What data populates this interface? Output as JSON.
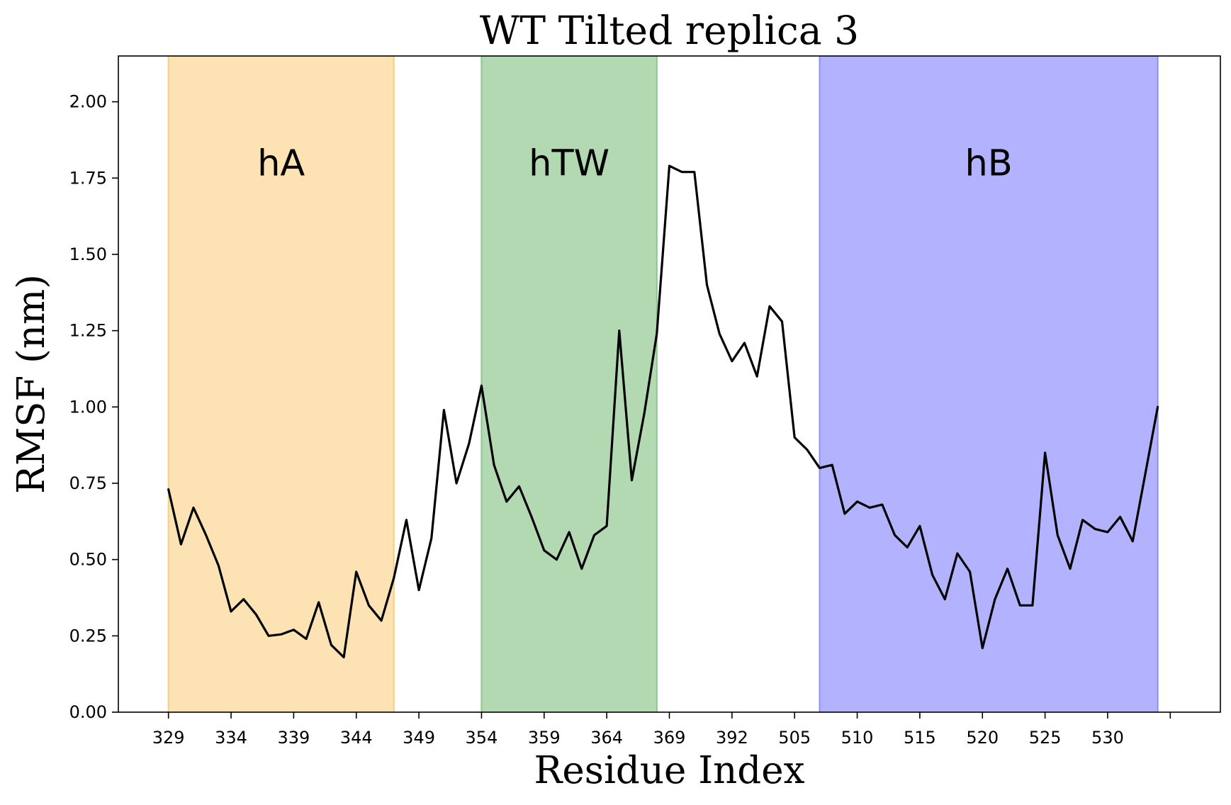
{
  "chart_data": {
    "type": "line",
    "title": "WT Tilted replica 3",
    "xlabel": "Residue Index",
    "ylabel": "RMSF (nm)",
    "ylim": [
      0,
      2.15
    ],
    "xlim": [
      -4,
      84
    ],
    "grid": false,
    "y_ticks": [
      0.0,
      0.25,
      0.5,
      0.75,
      1.0,
      1.25,
      1.5,
      1.75,
      2.0
    ],
    "y_tick_labels": [
      "0.00",
      "0.25",
      "0.50",
      "0.75",
      "1.00",
      "1.25",
      "1.50",
      "1.75",
      "2.00"
    ],
    "x_tick_positions": [
      0,
      5,
      10,
      15,
      20,
      25,
      30,
      35,
      40,
      45,
      50,
      55,
      60,
      65,
      70,
      75,
      80
    ],
    "x_tick_labels": [
      "329",
      "334",
      "339",
      "344",
      "349",
      "354",
      "359",
      "364",
      "369",
      "392",
      "505",
      "510",
      "515",
      "520",
      "525",
      "530",
      ""
    ],
    "regions": [
      {
        "label": "hA",
        "x_start": 0,
        "x_end": 18,
        "color": "#fde2b3",
        "edge": "#f6cf7e"
      },
      {
        "label": "hTW",
        "x_start": 25,
        "x_end": 39,
        "color": "#b2d9b2",
        "edge": "#8cc58c"
      },
      {
        "label": "hB",
        "x_start": 52,
        "x_end": 79,
        "color": "#b2b2ff",
        "edge": "#8f8ff2"
      }
    ],
    "region_label_y": 1.8,
    "series": [
      {
        "color": "#000000",
        "values": [
          0.73,
          0.55,
          0.67,
          0.58,
          0.48,
          0.33,
          0.37,
          0.32,
          0.25,
          0.255,
          0.27,
          0.24,
          0.36,
          0.22,
          0.18,
          0.46,
          0.35,
          0.3,
          0.44,
          0.63,
          0.4,
          0.57,
          0.99,
          0.75,
          0.88,
          1.07,
          0.81,
          0.69,
          0.74,
          0.64,
          0.53,
          0.5,
          0.59,
          0.47,
          0.58,
          0.61,
          1.25,
          0.76,
          0.98,
          1.24,
          1.79,
          1.77,
          1.77,
          1.4,
          1.24,
          1.15,
          1.21,
          1.1,
          1.33,
          1.28,
          0.9,
          0.86,
          0.8,
          0.81,
          0.65,
          0.69,
          0.67,
          0.68,
          0.58,
          0.54,
          0.61,
          0.45,
          0.37,
          0.52,
          0.46,
          0.21,
          0.37,
          0.47,
          0.35,
          0.35,
          0.85,
          0.58,
          0.47,
          0.63,
          0.6,
          0.59,
          0.64,
          0.56,
          0.78,
          1.0
        ]
      }
    ]
  }
}
